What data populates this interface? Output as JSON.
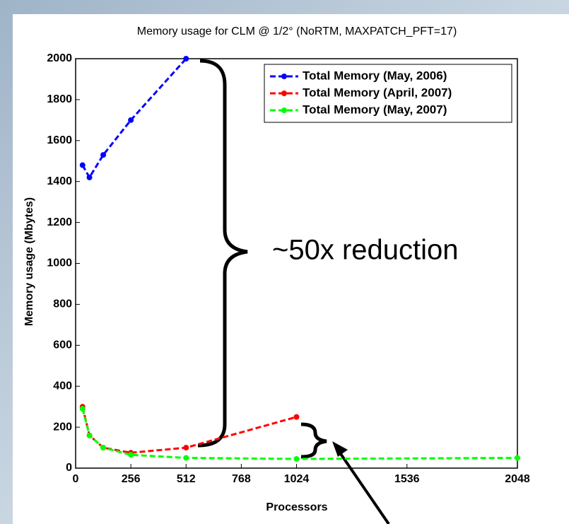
{
  "chart_data": {
    "type": "line",
    "title": "Memory usage for CLM @ 1/2° (NoRTM, MAXPATCH_PFT=17)",
    "x_label": "Processors",
    "y_label": "Memory usage (Mbytes)",
    "annotation": "~50x reduction",
    "xlim": [
      0,
      2048
    ],
    "xticks": [
      0,
      256,
      512,
      768,
      1024,
      1536,
      2048
    ],
    "ylim": [
      0,
      2000
    ],
    "yticks": [
      0,
      200,
      400,
      600,
      800,
      1000,
      1200,
      1400,
      1600,
      1800,
      2000
    ],
    "legend": "upper right",
    "series": [
      {
        "name": "Total Memory (May, 2006)",
        "color": "#0000ff",
        "x": [
          32,
          64,
          128,
          256,
          512
        ],
        "values": [
          1480,
          1420,
          1530,
          1700,
          2000
        ]
      },
      {
        "name": "Total Memory (April, 2007)",
        "color": "#ff0000",
        "x": [
          32,
          64,
          128,
          256,
          512,
          1024
        ],
        "values": [
          300,
          160,
          100,
          75,
          100,
          250
        ]
      },
      {
        "name": "Total Memory (May, 2007)",
        "color": "#00ff00",
        "x": [
          32,
          64,
          128,
          256,
          512,
          1024,
          2048
        ],
        "values": [
          290,
          160,
          100,
          65,
          50,
          45,
          50
        ]
      }
    ]
  }
}
